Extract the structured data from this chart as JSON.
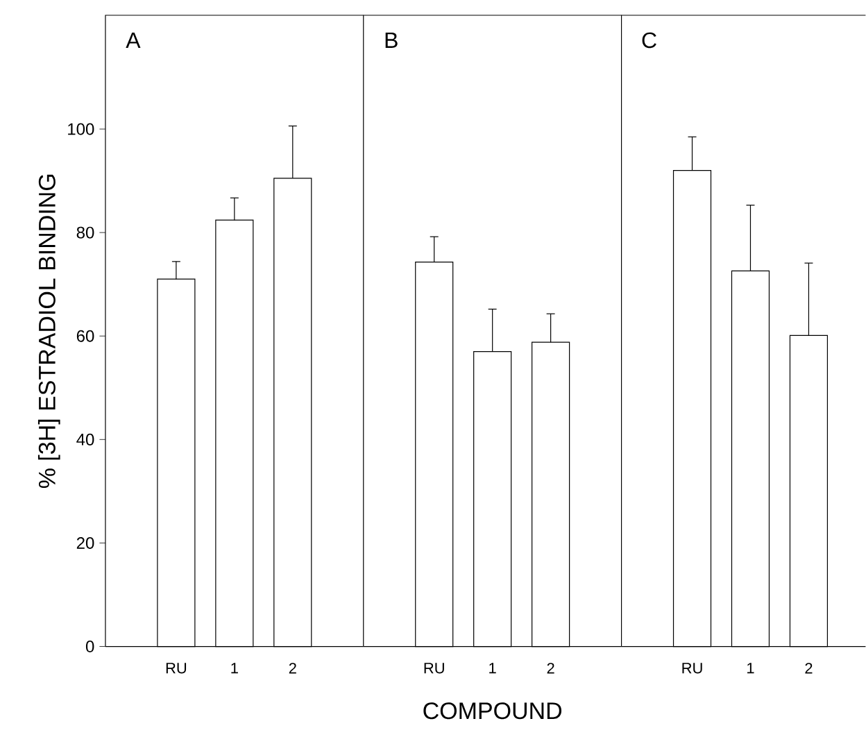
{
  "chart_data": [
    {
      "type": "bar",
      "title": "A",
      "ylabel": "% [3H] ESTRADIOL  BINDING",
      "categories": [
        "RU",
        "1",
        "2"
      ],
      "values": [
        71,
        82.4,
        90.5
      ],
      "errors": [
        3.4,
        4.3,
        10.1
      ],
      "color": "#ffffff",
      "ylim": [
        0,
        122
      ],
      "yticks": [
        0,
        20,
        40,
        60,
        80,
        100
      ]
    },
    {
      "type": "bar",
      "title": "B",
      "xlabel": "COMPOUND",
      "categories": [
        "RU",
        "1",
        "2"
      ],
      "values": [
        74.3,
        57,
        58.8
      ],
      "errors": [
        4.9,
        8.2,
        5.5
      ],
      "color": "#ffffff",
      "ylim": [
        0,
        122
      ],
      "tick_labels": "x"
    },
    {
      "type": "bar",
      "title": "C",
      "categories": [
        "RU",
        "1",
        "2"
      ],
      "values": [
        92,
        72.6,
        60.1
      ],
      "errors": [
        6.5,
        12.7,
        14
      ],
      "color": "#ffffff",
      "ylim": [
        0,
        122
      ],
      "tick_labels": "x"
    }
  ]
}
